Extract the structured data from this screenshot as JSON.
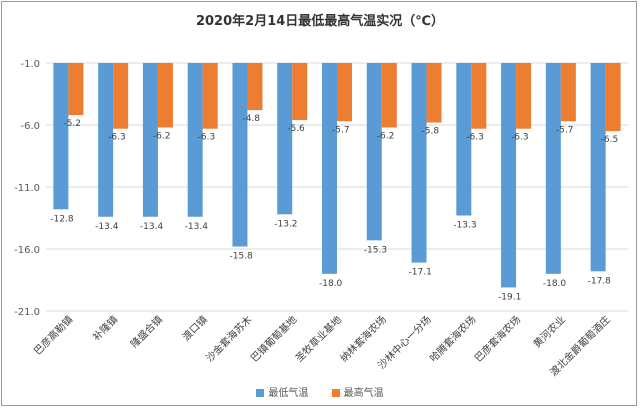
{
  "chart_data": {
    "type": "bar",
    "title": "2020年2月14日最低最高气温实况（℃）",
    "categories": [
      "巴彦高勒镇",
      "补隆镇",
      "隆盛合镇",
      "渡口镇",
      "沙金套海苏木",
      "巴镇葡萄基地",
      "圣牧草业基地",
      "纳林套海农场",
      "沙林中心一分场",
      "哈腾套海农场",
      "巴彦套海农场",
      "黄河农业",
      "渡北金爵葡萄酒庄"
    ],
    "series": [
      {
        "name": "最低气温",
        "color": "#5b9bd5",
        "values": [
          -12.8,
          -13.4,
          -13.4,
          -13.4,
          -15.8,
          -13.2,
          -18.0,
          -15.3,
          -17.1,
          -13.3,
          -19.1,
          -18.0,
          -17.8
        ]
      },
      {
        "name": "最高气温",
        "color": "#ed7d31",
        "values": [
          -5.2,
          -6.3,
          -6.2,
          -6.3,
          -4.8,
          -5.6,
          -5.7,
          -6.2,
          -5.8,
          -6.3,
          -6.3,
          -5.7,
          -6.5
        ]
      }
    ],
    "yticks": [
      "-1.0",
      "-6.0",
      "-11.0",
      "-16.0",
      "-21.0"
    ],
    "ylim": [
      -21.0,
      -1.0
    ],
    "grid": true,
    "legend_position": "bottom"
  }
}
